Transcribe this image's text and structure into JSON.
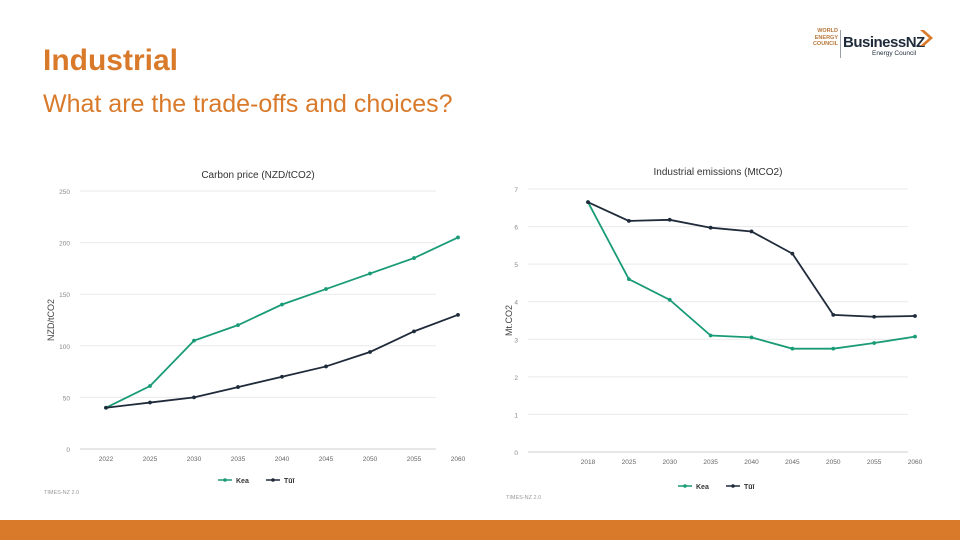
{
  "slide": {
    "title": "Industrial",
    "subtitle": "What are the trade-offs and choices?"
  },
  "logo": {
    "wec_lines": [
      "WORLD",
      "ENERGY",
      "COUNCIL"
    ],
    "name": "BusinessNZ",
    "tagline": "Energy Council"
  },
  "colors": {
    "accent": "#d97a2b",
    "kea": "#1a9b77",
    "tui": "#1f2b3a"
  },
  "chart_data": [
    {
      "type": "line",
      "title": "Carbon price (NZD/tCO2)",
      "ylabel": "NZD/tCO2",
      "xlabel": "",
      "categories": [
        "2022",
        "2025",
        "2030",
        "2035",
        "2040",
        "2045",
        "2050",
        "2055",
        "2060"
      ],
      "yticks": [
        0,
        50,
        100,
        150,
        200,
        250
      ],
      "ylim": [
        0,
        250
      ],
      "grid": true,
      "series": [
        {
          "name": "Kea",
          "color": "#1a9b77",
          "values": [
            40,
            61,
            105,
            120,
            140,
            155,
            170,
            185,
            205
          ]
        },
        {
          "name": "Tūī",
          "color": "#1f2b3a",
          "values": [
            40,
            45,
            50,
            60,
            70,
            80,
            94,
            114,
            130
          ]
        }
      ],
      "legend": "bottom",
      "source": "TIMES-NZ 2.0"
    },
    {
      "type": "line",
      "title": "Industrial emissions (MtCO2)",
      "ylabel": "Mt.CO2",
      "xlabel": "",
      "categories": [
        "2018",
        "2025",
        "2030",
        "2035",
        "2040",
        "2045",
        "2050",
        "2055",
        "2060"
      ],
      "yticks": [
        0,
        1,
        2,
        3,
        4,
        5,
        6,
        7
      ],
      "ylim": [
        0,
        7
      ],
      "grid": true,
      "series": [
        {
          "name": "Kea",
          "color": "#1a9b77",
          "values": [
            6.65,
            4.6,
            4.05,
            3.1,
            3.05,
            2.75,
            2.75,
            2.9,
            3.07
          ]
        },
        {
          "name": "Tūī",
          "color": "#1f2b3a",
          "values": [
            6.65,
            6.15,
            6.18,
            5.97,
            5.87,
            5.28,
            3.65,
            3.6,
            3.62
          ]
        }
      ],
      "legend": "bottom",
      "source": "TIMES-NZ 2.0"
    }
  ]
}
